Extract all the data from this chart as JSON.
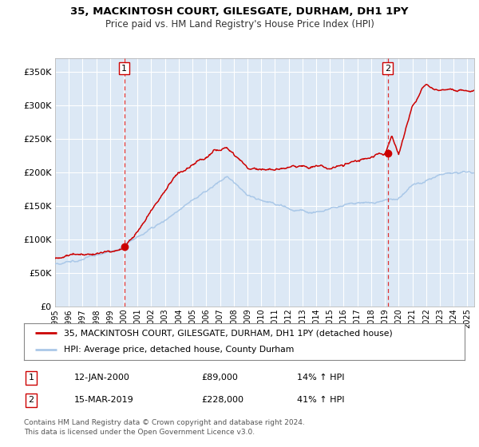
{
  "title": "35, MACKINTOSH COURT, GILESGATE, DURHAM, DH1 1PY",
  "subtitle": "Price paid vs. HM Land Registry's House Price Index (HPI)",
  "x_start": 1995.0,
  "x_end": 2025.5,
  "y_min": 0,
  "y_max": 370000,
  "y_ticks": [
    0,
    50000,
    100000,
    150000,
    200000,
    250000,
    300000,
    350000
  ],
  "y_tick_labels": [
    "£0",
    "£50K",
    "£100K",
    "£150K",
    "£200K",
    "£250K",
    "£300K",
    "£350K"
  ],
  "sale1_x": 2000.04,
  "sale1_y": 89000,
  "sale1_label": "1",
  "sale2_x": 2019.21,
  "sale2_y": 228000,
  "sale2_label": "2",
  "hpi_line_color": "#aac8e8",
  "price_line_color": "#cc0000",
  "marker_color": "#cc0000",
  "vline_color": "#dd3333",
  "plot_bg": "#dce8f5",
  "grid_color": "#ffffff",
  "legend_label_red": "35, MACKINTOSH COURT, GILESGATE, DURHAM, DH1 1PY (detached house)",
  "legend_label_blue": "HPI: Average price, detached house, County Durham",
  "annotation1_date": "12-JAN-2000",
  "annotation1_price": "£89,000",
  "annotation1_hpi": "14% ↑ HPI",
  "annotation2_date": "15-MAR-2019",
  "annotation2_price": "£228,000",
  "annotation2_hpi": "41% ↑ HPI",
  "footer": "Contains HM Land Registry data © Crown copyright and database right 2024.\nThis data is licensed under the Open Government Licence v3.0.",
  "x_tick_years": [
    1995,
    1996,
    1997,
    1998,
    1999,
    2000,
    2001,
    2002,
    2003,
    2004,
    2005,
    2006,
    2007,
    2008,
    2009,
    2010,
    2011,
    2012,
    2013,
    2014,
    2015,
    2016,
    2017,
    2018,
    2019,
    2020,
    2021,
    2022,
    2023,
    2024,
    2025
  ]
}
